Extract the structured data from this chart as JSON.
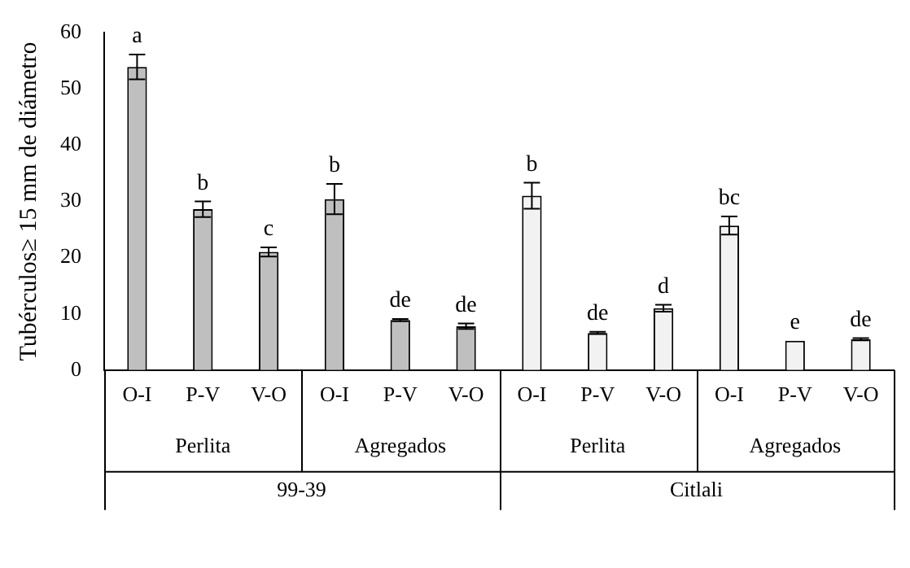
{
  "chart_data": {
    "type": "bar",
    "ylabel": "Tubérculos≥ 15 mm de diámetro",
    "categories": [
      "O-I",
      "P-V",
      "V-O",
      "O-I",
      "P-V",
      "V-O",
      "O-I",
      "P-V",
      "V-O",
      "O-I",
      "P-V",
      "V-O"
    ],
    "values": [
      53.9,
      28.6,
      21.0,
      30.4,
      8.9,
      7.8,
      31.0,
      6.6,
      11.0,
      25.7,
      5.2,
      5.5
    ],
    "errors": [
      2.2,
      1.4,
      0.8,
      2.7,
      0.2,
      0.5,
      2.3,
      0.2,
      0.6,
      1.6,
      null,
      0.2
    ],
    "value_labels": [
      "a",
      "b",
      "c",
      "b",
      "de",
      "de",
      "b",
      "de",
      "d",
      "bc",
      "e",
      "de"
    ],
    "colors": [
      "#bfbfbf",
      "#bfbfbf",
      "#bfbfbf",
      "#bfbfbf",
      "#bfbfbf",
      "#bfbfbf",
      "#f2f2f2",
      "#f2f2f2",
      "#f2f2f2",
      "#f2f2f2",
      "#f2f2f2",
      "#f2f2f2"
    ],
    "ylim": [
      0,
      60
    ],
    "yticks": [
      0,
      10,
      20,
      30,
      40,
      50,
      60
    ],
    "grid": false,
    "legend": false,
    "annotations": [
      "Perlita",
      "Agregados",
      "Perlita",
      "Agregados",
      "99-39",
      "Citlali"
    ]
  }
}
